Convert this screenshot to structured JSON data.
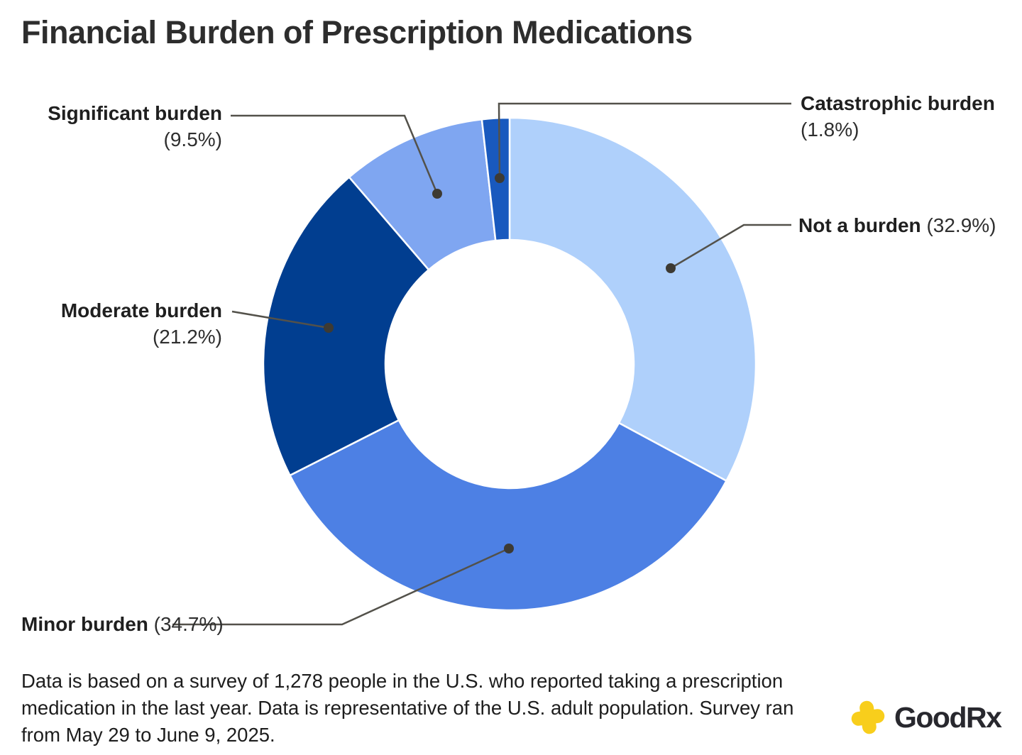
{
  "page": {
    "title": "Financial Burden of Prescription Medications"
  },
  "chart_data": {
    "type": "pie",
    "subtype": "donut",
    "title": "Financial Burden of Prescription Medications",
    "start_angle_deg": 0,
    "direction": "clockwise",
    "series": [
      {
        "label": "Not a burden",
        "value": 32.9,
        "display": "(32.9%)",
        "color": "#AFD0FB"
      },
      {
        "label": "Minor burden",
        "value": 34.7,
        "display": "(34.7%)",
        "color": "#4D80E4"
      },
      {
        "label": "Moderate burden",
        "value": 21.2,
        "display": "(21.2%)",
        "color": "#013E90"
      },
      {
        "label": "Significant burden",
        "value": 9.5,
        "display": "(9.5%)",
        "color": "#7FA6F1"
      },
      {
        "label": "Catastrophic burden",
        "value": 1.8,
        "display": "(1.8%)",
        "color": "#1959BE"
      }
    ],
    "legend_position": "callout-labels",
    "leader_line_color": "#53514a",
    "leader_dot_color": "#3d3a33",
    "segment_gap_color": "#ffffff"
  },
  "footer": {
    "lines": [
      "Data is based on a survey of 1,278 people in the U.S. who reported taking a prescription",
      "medication in the last year. Data is representative of the U.S. adult population. Survey ran",
      "from May 29 to June 9, 2025."
    ]
  },
  "branding": {
    "logo_text": "GoodRx",
    "logo_icon": "goodrx-cross-icon",
    "logo_icon_color": "#F8CE1C"
  }
}
